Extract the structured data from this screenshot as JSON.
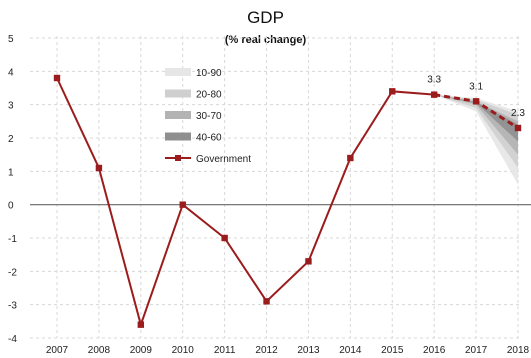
{
  "chart_data": {
    "type": "line",
    "title": "GDP",
    "subtitle": "(% real change)",
    "xlabel": "",
    "ylabel": "",
    "x": [
      "2007",
      "2008",
      "2009",
      "2010",
      "2011",
      "2012",
      "2013",
      "2014",
      "2015",
      "2016",
      "2017",
      "2018"
    ],
    "ylim": [
      -4,
      5
    ],
    "yticks": [
      5,
      4,
      3,
      2,
      1,
      0,
      -1,
      -2,
      -3,
      -4
    ],
    "grid": true,
    "legend_position": "top-left",
    "colors": {
      "government": "#9b1c1c",
      "band_10_90": "#e6e6e6",
      "band_20_80": "#cfcfcf",
      "band_30_70": "#b3b3b3",
      "band_40_60": "#8f8f8f",
      "grid": "#d8d8d8",
      "zero_line": "#666666"
    },
    "series": [
      {
        "name": "Government",
        "values": [
          3.8,
          1.1,
          -3.6,
          0.0,
          -1.0,
          -2.9,
          -1.7,
          1.4,
          3.4,
          3.3,
          3.1,
          2.3
        ],
        "forecast_from_index": 9
      }
    ],
    "fan_bands": [
      {
        "name": "10-90",
        "x": [
          "2016",
          "2017",
          "2018"
        ],
        "low": [
          3.3,
          2.8,
          0.6
        ],
        "high": [
          3.3,
          3.2,
          2.8
        ]
      },
      {
        "name": "20-80",
        "x": [
          "2016",
          "2017",
          "2018"
        ],
        "low": [
          3.3,
          2.9,
          1.1
        ],
        "high": [
          3.3,
          3.15,
          2.7
        ]
      },
      {
        "name": "30-70",
        "x": [
          "2016",
          "2017",
          "2018"
        ],
        "low": [
          3.3,
          3.0,
          1.5
        ],
        "high": [
          3.3,
          3.1,
          2.5
        ]
      },
      {
        "name": "40-60",
        "x": [
          "2016",
          "2017",
          "2018"
        ],
        "low": [
          3.3,
          3.05,
          1.9
        ],
        "high": [
          3.3,
          3.08,
          2.4
        ]
      }
    ],
    "data_labels": [
      {
        "x": "2016",
        "y": 3.3,
        "text": "3.3"
      },
      {
        "x": "2017",
        "y": 3.1,
        "text": "3.1"
      },
      {
        "x": "2018",
        "y": 2.3,
        "text": "2.3"
      }
    ]
  }
}
